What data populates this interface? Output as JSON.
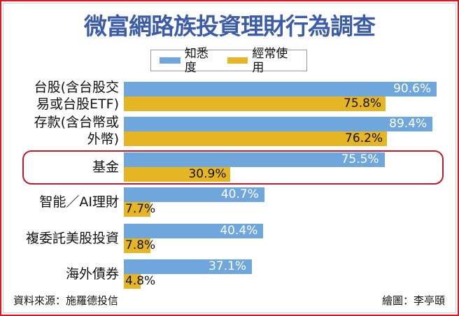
{
  "title": "微富網路族投資理財行為調查",
  "legend": {
    "items": [
      {
        "label": "知悉度",
        "color": "#6fa6dc"
      },
      {
        "label": "經常使用",
        "color": "#e5b523"
      }
    ]
  },
  "colors": {
    "awareness": "#6fa6dc",
    "usage": "#e5b523",
    "title": "#3b5ca8",
    "highlight": "#c0192d"
  },
  "rows": [
    {
      "label_line1": "台股(含台股交",
      "label_line2": "易或台股ETF)",
      "awareness": 90.6,
      "awareness_text": "90.6%",
      "usage": 75.8,
      "usage_text": "75.8%"
    },
    {
      "label_line1": "存款(含台幣或",
      "label_line2": "外幣)",
      "awareness": 89.4,
      "awareness_text": "89.4%",
      "usage": 76.2,
      "usage_text": "76.2%"
    },
    {
      "label_line1": "基金",
      "label_line2": "",
      "awareness": 75.5,
      "awareness_text": "75.5%",
      "usage": 30.9,
      "usage_text": "30.9%",
      "highlighted": true
    },
    {
      "label_line1": "智能／AI理財",
      "label_line2": "",
      "awareness": 40.7,
      "awareness_text": "40.7%",
      "usage": 7.7,
      "usage_text": "7.7%"
    },
    {
      "label_line1": "複委託美股投資",
      "label_line2": "",
      "awareness": 40.4,
      "awareness_text": "40.4%",
      "usage": 7.8,
      "usage_text": "7.8%"
    },
    {
      "label_line1": "海外債券",
      "label_line2": "",
      "awareness": 37.1,
      "awareness_text": "37.1%",
      "usage": 4.8,
      "usage_text": "4.8%"
    }
  ],
  "footer": {
    "source": "資料來源：施羅德投信",
    "credit": "繪圖：李亭頤"
  },
  "chart_data": {
    "type": "bar",
    "orientation": "horizontal",
    "title": "微富網路族投資理財行為調查",
    "categories": [
      "台股(含台股交易或台股ETF)",
      "存款(含台幣或外幣)",
      "基金",
      "智能／AI理財",
      "複委託美股投資",
      "海外債券"
    ],
    "series": [
      {
        "name": "知悉度",
        "color": "#6fa6dc",
        "values": [
          90.6,
          89.4,
          75.5,
          40.7,
          40.4,
          37.1
        ]
      },
      {
        "name": "經常使用",
        "color": "#e5b523",
        "values": [
          75.8,
          76.2,
          30.9,
          7.7,
          7.8,
          4.8
        ]
      }
    ],
    "unit": "%",
    "xlabel": "",
    "ylabel": "",
    "xlim": [
      0,
      100
    ],
    "grid": false,
    "legend_position": "top",
    "annotations": [
      "基金 row highlighted with rounded red box"
    ],
    "source": "資料來源：施羅德投信",
    "credit": "繪圖：李亭頤"
  }
}
